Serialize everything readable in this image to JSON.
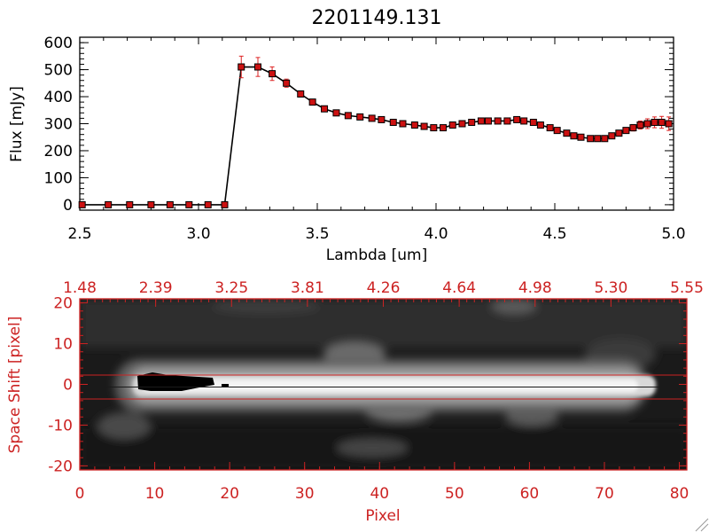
{
  "chart_data": [
    {
      "type": "line",
      "title": "2201149.131",
      "xlabel": "Lambda [um]",
      "ylabel": "Flux [mJy]",
      "xlim": [
        2.5,
        5.0
      ],
      "ylim": [
        -20,
        620
      ],
      "x_ticks": [
        "2.5",
        "3.0",
        "3.5",
        "4.0",
        "4.5",
        "5.0"
      ],
      "y_ticks": [
        "0",
        "100",
        "200",
        "300",
        "400",
        "500",
        "600"
      ],
      "line_color": "#000000",
      "marker_color": "#cc1111",
      "errorbar_color": "#dd2222",
      "series": [
        {
          "x": [
            2.51,
            2.62,
            2.71,
            2.8,
            2.88,
            2.96,
            3.04,
            3.11,
            3.18,
            3.25,
            3.31,
            3.37,
            3.43,
            3.48,
            3.53,
            3.58,
            3.63,
            3.68,
            3.73,
            3.77,
            3.82,
            3.86,
            3.91,
            3.95,
            3.99,
            4.03,
            4.07,
            4.11,
            4.15,
            4.19,
            4.22,
            4.26,
            4.3,
            4.34,
            4.37,
            4.41,
            4.44,
            4.48,
            4.51,
            4.55,
            4.58,
            4.61,
            4.65,
            4.68,
            4.71,
            4.74,
            4.77,
            4.8,
            4.83,
            4.86,
            4.89,
            4.92,
            4.95,
            4.98
          ],
          "y": [
            0,
            0,
            0,
            0,
            0,
            0,
            0,
            0,
            510,
            510,
            485,
            450,
            410,
            380,
            355,
            340,
            330,
            325,
            320,
            315,
            305,
            300,
            295,
            290,
            285,
            285,
            295,
            300,
            305,
            310,
            310,
            310,
            310,
            315,
            310,
            305,
            295,
            285,
            275,
            265,
            255,
            250,
            245,
            245,
            245,
            255,
            265,
            275,
            285,
            295,
            300,
            305,
            305,
            300
          ],
          "err": [
            0,
            0,
            0,
            0,
            0,
            0,
            0,
            0,
            40,
            35,
            25,
            15,
            10,
            8,
            6,
            5,
            5,
            5,
            5,
            5,
            5,
            5,
            5,
            5,
            5,
            5,
            5,
            5,
            5,
            5,
            5,
            5,
            5,
            5,
            5,
            5,
            5,
            5,
            5,
            5,
            5,
            5,
            5,
            5,
            5,
            5,
            8,
            10,
            12,
            15,
            18,
            20,
            22,
            25
          ]
        }
      ]
    },
    {
      "type": "heatmap",
      "xlabel": "Pixel",
      "ylabel": "Space Shift [pixel]",
      "xlim": [
        0,
        81
      ],
      "ylim": [
        -21,
        21
      ],
      "x_ticks": [
        "0",
        "10",
        "20",
        "30",
        "40",
        "50",
        "60",
        "70",
        "80"
      ],
      "y_ticks": [
        "20",
        "10",
        "0",
        "-10",
        "-20"
      ],
      "top_axis_labels": [
        "1.48",
        "2.39",
        "3.25",
        "3.81",
        "4.26",
        "4.64",
        "4.98",
        "5.30",
        "5.55"
      ],
      "aperture_rows": [
        -3,
        3
      ],
      "axis_color": "#cc2222",
      "colormap": "grayscale"
    }
  ]
}
